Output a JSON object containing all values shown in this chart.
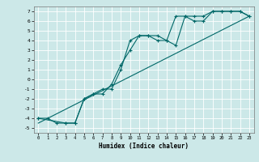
{
  "xlabel": "Humidex (Indice chaleur)",
  "bg_color": "#cce8e8",
  "line_color": "#006868",
  "grid_color": "#ffffff",
  "xlim": [
    -0.5,
    23.5
  ],
  "ylim": [
    -5.5,
    7.5
  ],
  "xticks": [
    0,
    1,
    2,
    3,
    4,
    5,
    6,
    7,
    8,
    9,
    10,
    11,
    12,
    13,
    14,
    15,
    16,
    17,
    18,
    19,
    20,
    21,
    22,
    23
  ],
  "yticks": [
    -5,
    -4,
    -3,
    -2,
    -1,
    0,
    1,
    2,
    3,
    4,
    5,
    6,
    7
  ],
  "series1_x": [
    0,
    1,
    2,
    3,
    4,
    5,
    6,
    7,
    8,
    9,
    10,
    11,
    12,
    13,
    14,
    15,
    16,
    17,
    18,
    19,
    20,
    21,
    22,
    23
  ],
  "series1_y": [
    -4,
    -4,
    -4.5,
    -4.5,
    -4.5,
    -2,
    -1.5,
    -1,
    -1,
    1,
    4,
    4.5,
    4.5,
    4,
    4,
    6.5,
    6.5,
    6.5,
    6.5,
    7,
    7,
    7,
    7,
    6.5
  ],
  "series2_x": [
    0,
    3,
    4,
    5,
    6,
    7,
    8,
    9,
    10,
    11,
    12,
    13,
    14,
    15,
    16,
    17,
    18,
    19,
    20,
    21,
    22,
    23
  ],
  "series2_y": [
    -4,
    -4.5,
    -4.5,
    -2,
    -1.5,
    -1.5,
    -0.5,
    1.5,
    3,
    4.5,
    4.5,
    4.5,
    4,
    3.5,
    6.5,
    6,
    6,
    7,
    7,
    7,
    7,
    6.5
  ],
  "series3_x": [
    0,
    23
  ],
  "series3_y": [
    -4.5,
    6.5
  ]
}
